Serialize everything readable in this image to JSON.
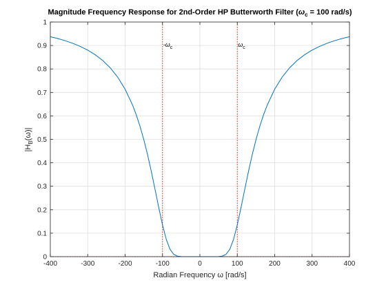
{
  "chart_data": {
    "type": "line",
    "title_parts": {
      "before": "Magnitude Frequency Response for 2nd-Order HP Butterworth Filter (",
      "omega": "ω",
      "omega_sub": "c",
      "after": " = 100 rad/s)"
    },
    "xlabel": "Radian Frequency ω [rad/s]",
    "ylabel_parts": {
      "a": "|H",
      "sub": "B",
      "b": "(ω)|"
    },
    "xlim": [
      -400,
      400
    ],
    "ylim": [
      0,
      1
    ],
    "xticks": [
      -400,
      -300,
      -200,
      -100,
      0,
      100,
      200,
      300,
      400
    ],
    "yticks": [
      0,
      0.1,
      0.2,
      0.3,
      0.4,
      0.5,
      0.6,
      0.7,
      0.8,
      0.9,
      1
    ],
    "ytick_labels": [
      "0",
      "0.1",
      "0.2",
      "0.3",
      "0.4",
      "0.5",
      "0.6",
      "0.7",
      "0.8",
      "0.9",
      "1"
    ],
    "grid": true,
    "series": [
      {
        "color": "#0072BD",
        "x": [
          -400,
          -380,
          -360,
          -340,
          -320,
          -300,
          -280,
          -260,
          -240,
          -220,
          -200,
          -180,
          -170,
          -160,
          -150,
          -140,
          -130,
          -120,
          -110,
          -100,
          -90,
          -80,
          -70,
          -60,
          -50,
          -40,
          -30,
          -20,
          -10,
          0,
          10,
          20,
          30,
          40,
          50,
          60,
          70,
          80,
          90,
          100,
          110,
          120,
          130,
          140,
          150,
          160,
          170,
          180,
          200,
          220,
          240,
          260,
          280,
          300,
          320,
          340,
          360,
          380,
          400
        ],
        "y": [
          0.9374,
          0.9295,
          0.9203,
          0.9093,
          0.8962,
          0.8802,
          0.8605,
          0.8361,
          0.8051,
          0.7654,
          0.7137,
          0.6456,
          0.6035,
          0.5547,
          0.4986,
          0.4348,
          0.3636,
          0.2872,
          0.2094,
          0.1353,
          0.0742,
          0.0315,
          0.01,
          0.0023,
          0.0004,
          0.0001,
          0.0,
          0.0,
          0.0,
          0.0,
          0.0,
          0.0,
          0.0,
          0.0001,
          0.0004,
          0.0023,
          0.01,
          0.0315,
          0.0742,
          0.1353,
          0.2094,
          0.2872,
          0.3636,
          0.4348,
          0.4986,
          0.5547,
          0.6035,
          0.6456,
          0.7137,
          0.7654,
          0.8051,
          0.8361,
          0.8605,
          0.8802,
          0.8962,
          0.9093,
          0.9203,
          0.9295,
          0.9374
        ]
      }
    ],
    "vlines": [
      {
        "x": -100,
        "label": "-ω",
        "label_sub": "c",
        "color": "#d62728"
      },
      {
        "x": 100,
        "label": "ω",
        "label_sub": "c",
        "color": "#d62728"
      }
    ],
    "hline_color": "#d62728"
  }
}
